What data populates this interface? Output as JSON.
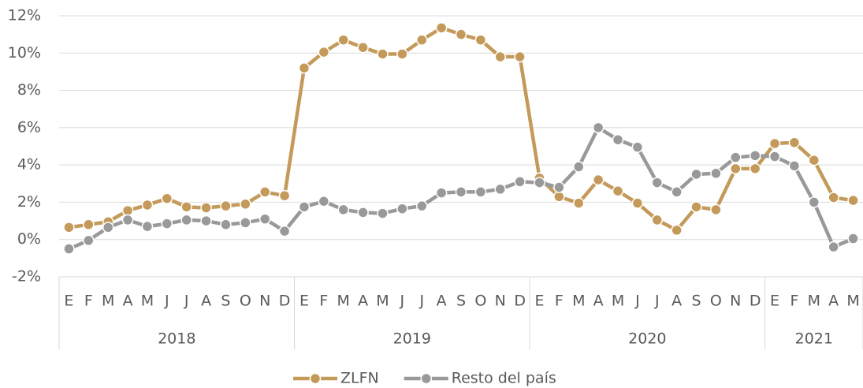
{
  "chart_data": {
    "type": "line",
    "groups": [
      {
        "label": "2018",
        "categories": [
          "E",
          "F",
          "M",
          "A",
          "M",
          "J",
          "J",
          "A",
          "S",
          "O",
          "N",
          "D"
        ]
      },
      {
        "label": "2019",
        "categories": [
          "E",
          "F",
          "M",
          "A",
          "M",
          "J",
          "J",
          "A",
          "S",
          "O",
          "N",
          "D"
        ]
      },
      {
        "label": "2020",
        "categories": [
          "E",
          "F",
          "M",
          "A",
          "M",
          "J",
          "J",
          "A",
          "S",
          "O",
          "N",
          "D"
        ]
      },
      {
        "label": "2021",
        "categories": [
          "E",
          "F",
          "M",
          "A",
          "M"
        ]
      }
    ],
    "series": [
      {
        "name": "ZLFN",
        "color": "#c49a5a",
        "values": [
          0.65,
          0.8,
          0.95,
          1.55,
          1.85,
          2.2,
          1.75,
          1.7,
          1.8,
          1.9,
          2.55,
          2.35,
          9.2,
          10.05,
          10.7,
          10.3,
          9.95,
          9.95,
          10.7,
          11.35,
          11.0,
          10.7,
          9.8,
          9.8,
          3.3,
          2.3,
          1.95,
          3.2,
          2.6,
          1.95,
          1.05,
          0.5,
          1.75,
          1.6,
          3.8,
          3.8,
          5.15,
          5.2,
          4.25,
          2.25,
          2.1
        ]
      },
      {
        "name": "Resto del país",
        "color": "#999999",
        "values": [
          -0.5,
          -0.05,
          0.65,
          1.05,
          0.7,
          0.85,
          1.05,
          1.0,
          0.8,
          0.9,
          1.1,
          0.45,
          1.75,
          2.05,
          1.6,
          1.45,
          1.4,
          1.65,
          1.8,
          2.5,
          2.55,
          2.55,
          2.7,
          3.1,
          3.05,
          2.8,
          3.9,
          6.0,
          5.35,
          4.95,
          3.05,
          2.55,
          3.5,
          3.55,
          4.4,
          4.5,
          4.45,
          3.95,
          2.0,
          -0.4,
          0.05
        ]
      }
    ],
    "ylim": [
      -2,
      12
    ],
    "yticks": [
      {
        "value": -2,
        "label": "-2%"
      },
      {
        "value": 0,
        "label": "0%"
      },
      {
        "value": 2,
        "label": "2%"
      },
      {
        "value": 4,
        "label": "4%"
      },
      {
        "value": 6,
        "label": "6%"
      },
      {
        "value": 8,
        "label": "8%"
      },
      {
        "value": 10,
        "label": "10%"
      },
      {
        "value": 12,
        "label": "12%"
      }
    ],
    "grid": true,
    "legend": "bottom"
  }
}
